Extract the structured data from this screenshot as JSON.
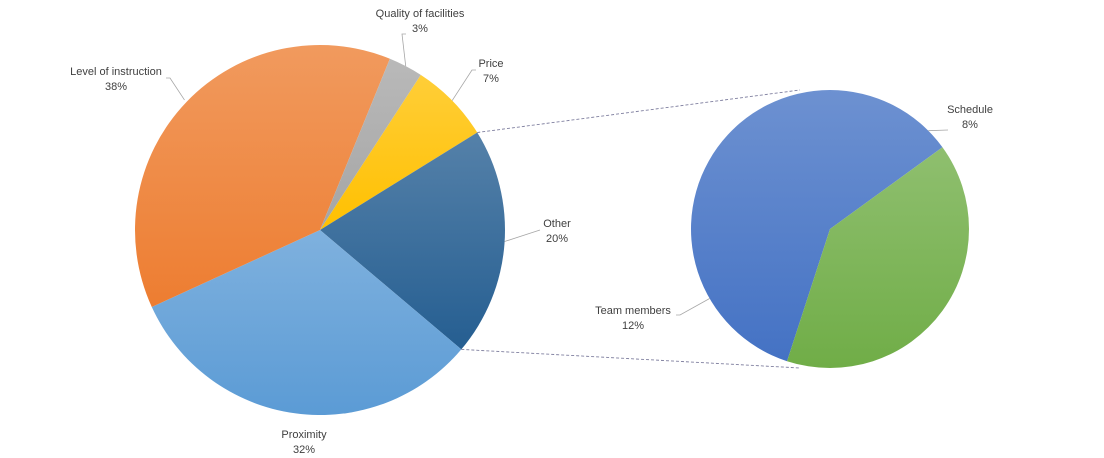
{
  "chart_data": {
    "type": "pie",
    "subtype": "pie-of-pie",
    "main_slices": [
      {
        "key": "price",
        "name": "Price",
        "value": 7,
        "label": "7%",
        "color": "#ffc000"
      },
      {
        "key": "other",
        "name": "Other",
        "value": 20,
        "label": "20%",
        "color": "#255e91"
      },
      {
        "key": "proximity",
        "name": "Proximity",
        "value": 32,
        "label": "32%",
        "color": "#5b9bd5"
      },
      {
        "key": "instruction",
        "name": "Level of instruction",
        "value": 38,
        "label": "38%",
        "color": "#ed7d31"
      },
      {
        "key": "facilities",
        "name": "Quality of facilities",
        "value": 3,
        "label": "3%",
        "color": "#a5a5a5"
      }
    ],
    "secondary_slices": [
      {
        "key": "schedule",
        "name": "Schedule",
        "value": 8,
        "label": "8%",
        "color": "#70ad47"
      },
      {
        "key": "team",
        "name": "Team members",
        "value": 12,
        "label": "12%",
        "color": "#4472c4"
      }
    ],
    "expanded_slice": "Other"
  }
}
